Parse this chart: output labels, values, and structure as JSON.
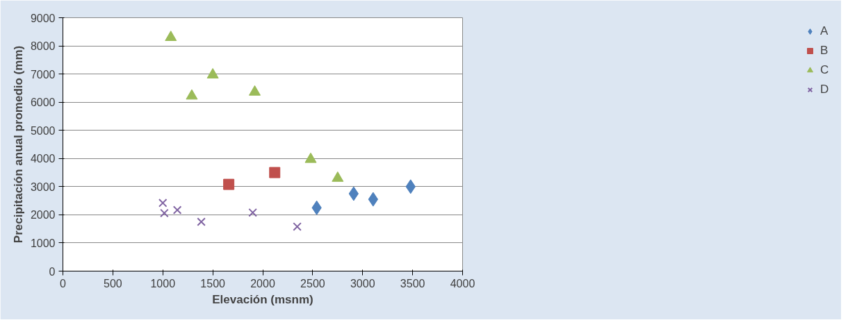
{
  "chart_data": {
    "type": "scatter",
    "xlabel": "Elevación (msnm)",
    "ylabel": "Precipitación anual promedio (mm)",
    "xlim": [
      0,
      4000
    ],
    "xticks": [
      0,
      500,
      1000,
      1500,
      2000,
      2500,
      3000,
      3500,
      4000
    ],
    "ylim": [
      0,
      9000
    ],
    "yticks": [
      0,
      1000,
      2000,
      3000,
      4000,
      5000,
      6000,
      7000,
      8000,
      9000
    ],
    "grid": "y",
    "legend": "right",
    "series": [
      {
        "name": "A",
        "color": "#4f81bd",
        "marker": "diamond",
        "x": [
          2540,
          2910,
          3105,
          3480
        ],
        "values": [
          2250,
          2750,
          2550,
          3000
        ]
      },
      {
        "name": "B",
        "color": "#c0504d",
        "marker": "square",
        "x": [
          1660,
          2120
        ],
        "values": [
          3080,
          3500
        ]
      },
      {
        "name": "C",
        "color": "#9bbb59",
        "marker": "triangle",
        "x": [
          1080,
          1290,
          1500,
          1920,
          2480,
          2750
        ],
        "values": [
          8300,
          6220,
          6970,
          6360,
          3970,
          3300
        ]
      },
      {
        "name": "D",
        "color": "#8064a2",
        "marker": "cross",
        "x": [
          1000,
          1015,
          1145,
          1385,
          1900,
          2345
        ],
        "values": [
          2420,
          2060,
          2170,
          1750,
          2080,
          1580
        ]
      }
    ]
  }
}
